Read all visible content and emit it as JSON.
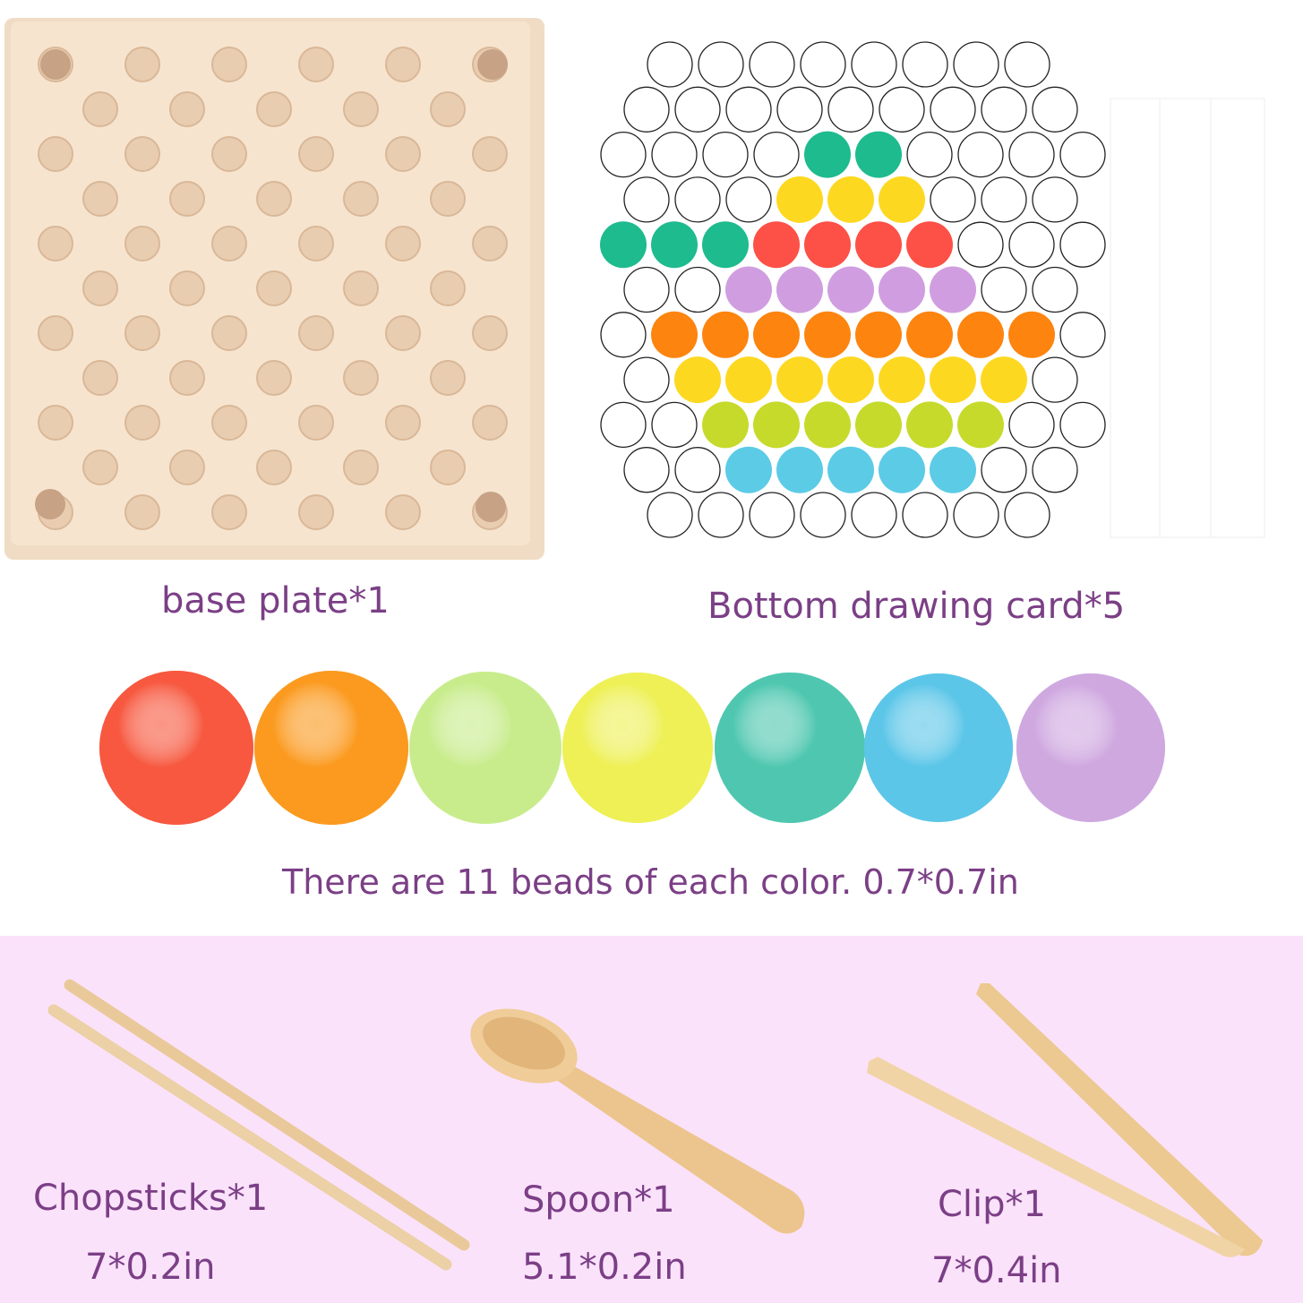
{
  "labels": {
    "base_plate": "base plate*1",
    "drawing_card": "Bottom drawing card*5",
    "beads": "There are 11 beads of each color. 0.7*0.7in",
    "chopsticks": "Chopsticks*1",
    "chopsticks_size": "7*0.2in",
    "spoon": "Spoon*1",
    "spoon_size": "5.1*0.2in",
    "clip": "Clip*1",
    "clip_size": "7*0.4in"
  },
  "colors": {
    "text": "#7b3f86",
    "pink_background": "#fbe2fb",
    "wood": "#f3dcc0",
    "G": "#1dbb8e",
    "Y": "#fdd821",
    "R": "#fd5046",
    "P": "#d09ee0",
    "O": "#fd840f",
    "L": "#c6da2c",
    "B": "#5ccbe6"
  },
  "card_pattern": [
    "WWWWWWWW",
    "WWWWWWWWW",
    "WWWWGGWWWW",
    "WWWYYYWWW",
    "GGGRRRRWWW",
    "WWPPPPPWW",
    "WOOOOOOOOW",
    "WYYYYYYYW",
    "WWLLLLLLWW",
    "WWBBBBBWW",
    "WWWWWWWW"
  ],
  "bead_colors": [
    "#f7583f",
    "#fb9a1f",
    "#c8ec8c",
    "#eef056",
    "#4fc7b0",
    "#5cc6e8",
    "#cfa8e0"
  ]
}
